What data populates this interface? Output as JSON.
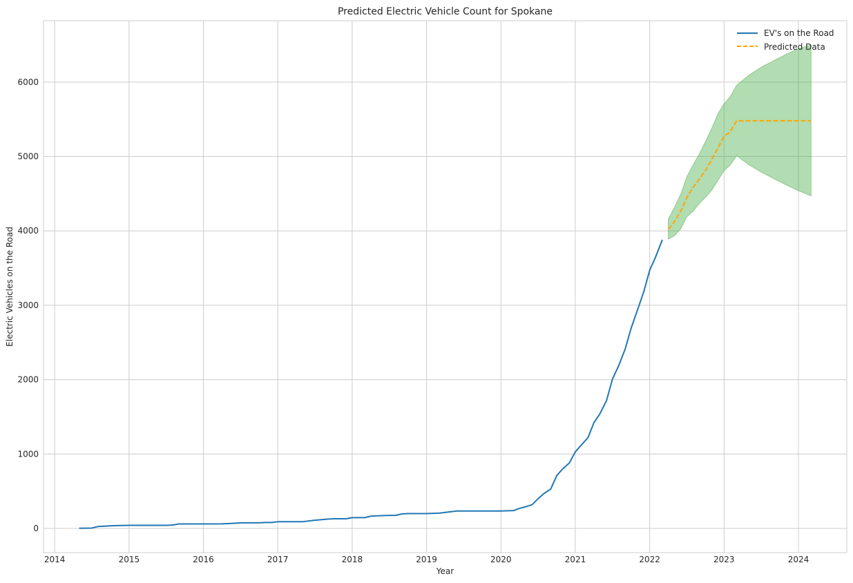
{
  "chart_data": {
    "type": "line",
    "title": "Predicted Electric Vehicle Count for Spokane",
    "xlabel": "Year",
    "ylabel": "Electric Vehicles on the Road",
    "xlim": [
      2013.85,
      2024.65
    ],
    "ylim": [
      -325,
      6825
    ],
    "grid": true,
    "legend_position": "top-right",
    "x_ticks": [
      2014,
      2015,
      2016,
      2017,
      2018,
      2019,
      2020,
      2021,
      2022,
      2023,
      2024
    ],
    "x_tick_labels": [
      "2014",
      "2015",
      "2016",
      "2017",
      "2018",
      "2019",
      "2020",
      "2021",
      "2022",
      "2023",
      "2024"
    ],
    "y_ticks": [
      0,
      1000,
      2000,
      3000,
      4000,
      5000,
      6000
    ],
    "y_tick_labels": [
      "0",
      "1000",
      "2000",
      "3000",
      "4000",
      "5000",
      "6000"
    ],
    "series": [
      {
        "name": "EV's on the Road",
        "color": "#1f77b4",
        "style": "solid",
        "x": [
          2014.33,
          2014.42,
          2014.5,
          2014.58,
          2014.67,
          2014.75,
          2014.83,
          2014.92,
          2015.0,
          2015.25,
          2015.5,
          2015.58,
          2015.67,
          2015.75,
          2016.0,
          2016.25,
          2016.33,
          2016.42,
          2016.5,
          2016.75,
          2016.83,
          2016.92,
          2017.0,
          2017.33,
          2017.5,
          2017.67,
          2017.75,
          2017.92,
          2018.0,
          2018.17,
          2018.25,
          2018.33,
          2018.5,
          2018.58,
          2018.67,
          2018.75,
          2019.0,
          2019.17,
          2019.33,
          2019.42,
          2019.5,
          2019.75,
          2020.0,
          2020.17,
          2020.25,
          2020.33,
          2020.42,
          2020.5,
          2020.58,
          2020.67,
          2020.75,
          2020.83,
          2020.92,
          2021.0,
          2021.08,
          2021.17,
          2021.25,
          2021.33,
          2021.42,
          2021.5,
          2021.58,
          2021.67,
          2021.75,
          2021.83,
          2021.92,
          2022.0,
          2022.08,
          2022.17
        ],
        "y": [
          2,
          3,
          5,
          25,
          30,
          35,
          38,
          40,
          42,
          42,
          42,
          45,
          60,
          60,
          60,
          62,
          65,
          70,
          75,
          75,
          80,
          80,
          90,
          90,
          110,
          125,
          130,
          130,
          145,
          145,
          165,
          170,
          175,
          175,
          195,
          200,
          200,
          205,
          225,
          235,
          235,
          235,
          235,
          240,
          270,
          290,
          320,
          400,
          470,
          530,
          710,
          800,
          880,
          1030,
          1120,
          1220,
          1420,
          1540,
          1720,
          2010,
          2180,
          2410,
          2690,
          2920,
          3180,
          3470,
          3650,
          3880
        ]
      },
      {
        "name": "Predicted Data",
        "color": "#ffa500",
        "style": "dashed",
        "x": [
          2022.25,
          2022.33,
          2022.42,
          2022.5,
          2022.58,
          2022.67,
          2022.75,
          2022.83,
          2022.92,
          2023.0,
          2023.08,
          2023.17,
          2023.5,
          2023.75,
          2024.0,
          2024.17
        ],
        "y": [
          4020,
          4120,
          4270,
          4450,
          4580,
          4700,
          4810,
          4950,
          5120,
          5270,
          5330,
          5480,
          5480,
          5480,
          5480,
          5480
        ]
      }
    ],
    "confidence_band": {
      "color": "#4daf4a",
      "opacity": 0.43,
      "x": [
        2022.25,
        2022.33,
        2022.42,
        2022.5,
        2022.58,
        2022.67,
        2022.75,
        2022.83,
        2022.92,
        2023.0,
        2023.08,
        2023.17,
        2023.33,
        2023.5,
        2023.67,
        2023.83,
        2024.0,
        2024.17
      ],
      "lower": [
        3890,
        3930,
        4030,
        4190,
        4260,
        4370,
        4450,
        4540,
        4680,
        4810,
        4880,
        5010,
        4890,
        4790,
        4700,
        4620,
        4540,
        4470
      ],
      "upper": [
        4160,
        4310,
        4500,
        4730,
        4880,
        5040,
        5200,
        5370,
        5580,
        5710,
        5800,
        5960,
        6090,
        6200,
        6290,
        6370,
        6450,
        6500
      ]
    }
  }
}
